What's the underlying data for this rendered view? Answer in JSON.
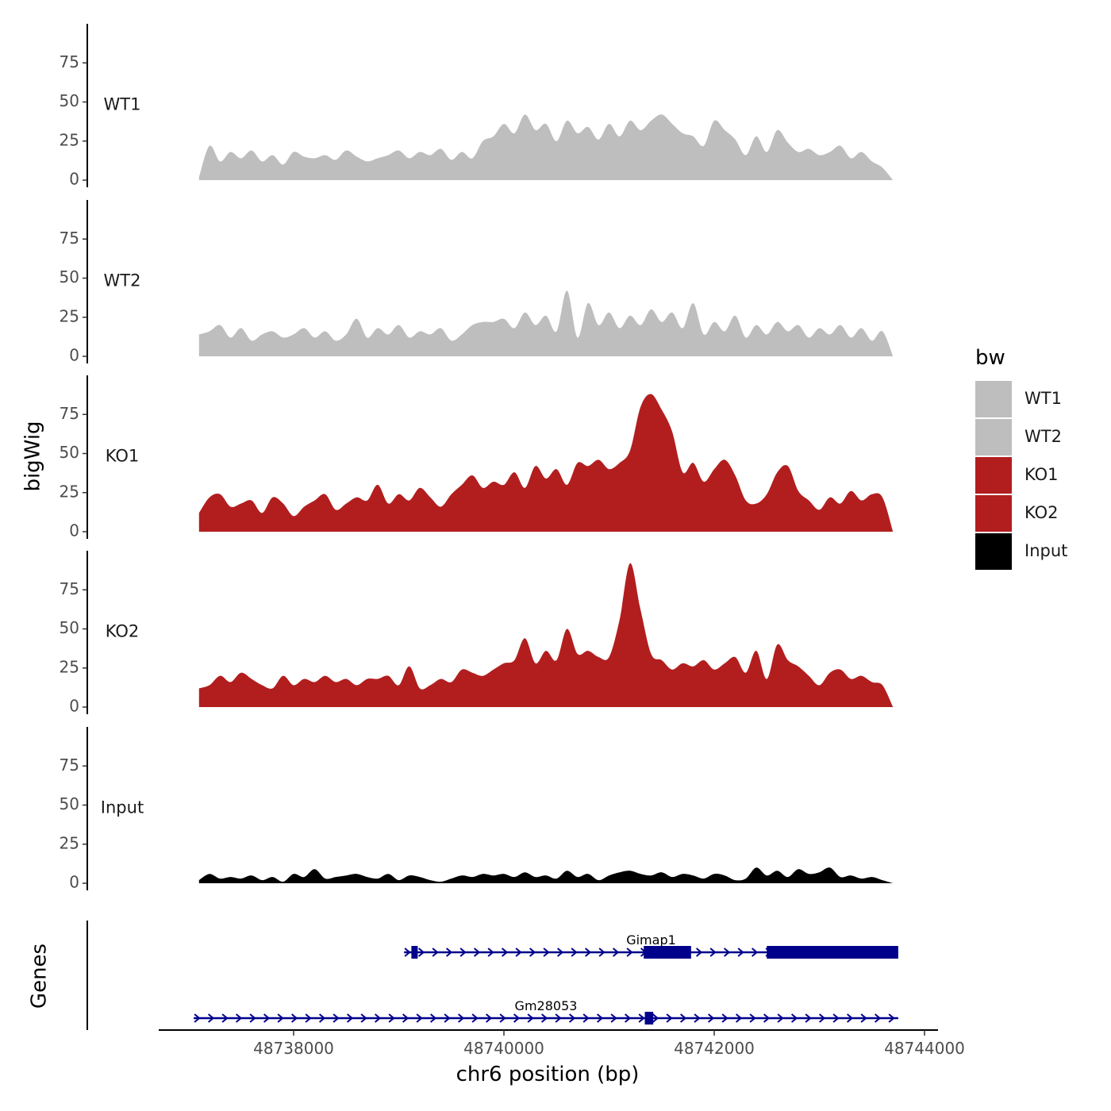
{
  "chart_data": {
    "type": "area",
    "x_axis": {
      "label": "chr6 position (bp)",
      "range": [
        48736700,
        48744200
      ],
      "ticks": [
        48738000,
        48740000,
        48742000,
        48744000
      ],
      "tick_labels": [
        "48738000",
        "48740000",
        "48742000",
        "48744000"
      ]
    },
    "y_axis": {
      "label": "bigWig",
      "range": [
        0,
        100
      ],
      "ticks": [
        0,
        25,
        50,
        75
      ],
      "tick_labels": [
        "0",
        "25",
        "50",
        "75"
      ]
    },
    "genes_axis_label": "Genes",
    "legend": {
      "title": "bw",
      "entries": [
        {
          "label": "WT1",
          "color": "#bebebe"
        },
        {
          "label": "WT2",
          "color": "#bebebe"
        },
        {
          "label": "KO1",
          "color": "#b21e1e"
        },
        {
          "label": "KO2",
          "color": "#b21e1e"
        },
        {
          "label": "Input",
          "color": "#000000"
        }
      ]
    },
    "series": [
      {
        "name": "WT1",
        "color": "#bebebe",
        "x": [
          48737100,
          48737200,
          48737300,
          48737400,
          48737500,
          48737600,
          48737700,
          48737800,
          48737900,
          48738000,
          48738100,
          48738200,
          48738300,
          48738400,
          48738500,
          48738600,
          48738700,
          48738800,
          48738900,
          48739000,
          48739100,
          48739200,
          48739300,
          48739400,
          48739500,
          48739600,
          48739700,
          48739800,
          48739900,
          48740000,
          48740100,
          48740200,
          48740300,
          48740400,
          48740500,
          48740600,
          48740700,
          48740800,
          48740900,
          48741000,
          48741100,
          48741200,
          48741300,
          48741400,
          48741500,
          48741600,
          48741700,
          48741800,
          48741900,
          48742000,
          48742100,
          48742200,
          48742300,
          48742400,
          48742500,
          48742600,
          48742700,
          48742800,
          48742900,
          48743000,
          48743100,
          48743200,
          48743300,
          48743400,
          48743500,
          48743600,
          48743700
        ],
        "values": [
          2,
          22,
          12,
          18,
          14,
          19,
          12,
          16,
          10,
          18,
          15,
          14,
          16,
          13,
          19,
          15,
          12,
          14,
          16,
          19,
          14,
          18,
          16,
          20,
          13,
          18,
          14,
          25,
          28,
          36,
          30,
          42,
          32,
          36,
          25,
          38,
          30,
          34,
          26,
          36,
          28,
          38,
          32,
          38,
          42,
          36,
          30,
          28,
          22,
          38,
          32,
          26,
          16,
          28,
          18,
          32,
          24,
          18,
          20,
          16,
          18,
          22,
          14,
          18,
          12,
          8,
          0
        ]
      },
      {
        "name": "WT2",
        "color": "#bebebe",
        "x": [
          48737100,
          48737200,
          48737300,
          48737400,
          48737500,
          48737600,
          48737700,
          48737800,
          48737900,
          48738000,
          48738100,
          48738200,
          48738300,
          48738400,
          48738500,
          48738600,
          48738700,
          48738800,
          48738900,
          48739000,
          48739100,
          48739200,
          48739300,
          48739400,
          48739500,
          48739600,
          48739700,
          48739800,
          48739900,
          48740000,
          48740100,
          48740200,
          48740300,
          48740400,
          48740500,
          48740600,
          48740700,
          48740800,
          48740900,
          48741000,
          48741100,
          48741200,
          48741300,
          48741400,
          48741500,
          48741600,
          48741700,
          48741800,
          48741900,
          48742000,
          48742100,
          48742200,
          48742300,
          48742400,
          48742500,
          48742600,
          48742700,
          48742800,
          48742900,
          48743000,
          48743100,
          48743200,
          48743300,
          48743400,
          48743500,
          48743600,
          48743700
        ],
        "values": [
          14,
          16,
          20,
          12,
          18,
          10,
          14,
          16,
          12,
          14,
          18,
          12,
          16,
          10,
          14,
          24,
          12,
          18,
          14,
          20,
          12,
          16,
          14,
          18,
          10,
          14,
          20,
          22,
          22,
          24,
          18,
          28,
          20,
          26,
          16,
          42,
          12,
          34,
          20,
          28,
          18,
          26,
          20,
          30,
          22,
          28,
          18,
          34,
          14,
          22,
          16,
          26,
          12,
          20,
          14,
          22,
          16,
          20,
          12,
          18,
          14,
          20,
          12,
          18,
          10,
          16,
          0
        ]
      },
      {
        "name": "KO1",
        "color": "#b21e1e",
        "x": [
          48737100,
          48737200,
          48737300,
          48737400,
          48737500,
          48737600,
          48737700,
          48737800,
          48737900,
          48738000,
          48738100,
          48738200,
          48738300,
          48738400,
          48738500,
          48738600,
          48738700,
          48738800,
          48738900,
          48739000,
          48739100,
          48739200,
          48739300,
          48739400,
          48739500,
          48739600,
          48739700,
          48739800,
          48739900,
          48740000,
          48740100,
          48740200,
          48740300,
          48740400,
          48740500,
          48740600,
          48740700,
          48740800,
          48740900,
          48741000,
          48741100,
          48741200,
          48741300,
          48741400,
          48741500,
          48741600,
          48741700,
          48741800,
          48741900,
          48742000,
          48742100,
          48742200,
          48742300,
          48742400,
          48742500,
          48742600,
          48742700,
          48742800,
          48742900,
          48743000,
          48743100,
          48743200,
          48743300,
          48743400,
          48743500,
          48743600,
          48743700
        ],
        "values": [
          12,
          22,
          24,
          16,
          18,
          20,
          12,
          22,
          18,
          10,
          16,
          20,
          24,
          14,
          18,
          22,
          20,
          30,
          18,
          24,
          20,
          28,
          22,
          16,
          24,
          30,
          36,
          28,
          32,
          30,
          38,
          28,
          42,
          34,
          40,
          30,
          44,
          42,
          46,
          40,
          44,
          52,
          80,
          88,
          78,
          64,
          38,
          44,
          32,
          40,
          46,
          36,
          20,
          18,
          24,
          38,
          42,
          26,
          20,
          14,
          22,
          18,
          26,
          20,
          24,
          22,
          0
        ]
      },
      {
        "name": "KO2",
        "color": "#b21e1e",
        "x": [
          48737100,
          48737200,
          48737300,
          48737400,
          48737500,
          48737600,
          48737700,
          48737800,
          48737900,
          48738000,
          48738100,
          48738200,
          48738300,
          48738400,
          48738500,
          48738600,
          48738700,
          48738800,
          48738900,
          48739000,
          48739100,
          48739200,
          48739300,
          48739400,
          48739500,
          48739600,
          48739700,
          48739800,
          48739900,
          48740000,
          48740100,
          48740200,
          48740300,
          48740400,
          48740500,
          48740600,
          48740700,
          48740800,
          48740900,
          48741000,
          48741100,
          48741200,
          48741300,
          48741400,
          48741500,
          48741600,
          48741700,
          48741800,
          48741900,
          48742000,
          48742100,
          48742200,
          48742300,
          48742400,
          48742500,
          48742600,
          48742700,
          48742800,
          48742900,
          48743000,
          48743100,
          48743200,
          48743300,
          48743400,
          48743500,
          48743600,
          48743700
        ],
        "values": [
          12,
          14,
          20,
          16,
          22,
          18,
          14,
          12,
          20,
          14,
          18,
          16,
          20,
          16,
          18,
          14,
          18,
          18,
          20,
          14,
          26,
          12,
          14,
          18,
          16,
          24,
          22,
          20,
          24,
          28,
          30,
          44,
          28,
          36,
          30,
          50,
          34,
          36,
          32,
          32,
          56,
          92,
          62,
          34,
          30,
          24,
          28,
          26,
          30,
          24,
          28,
          32,
          22,
          36,
          18,
          40,
          30,
          26,
          20,
          14,
          22,
          24,
          18,
          20,
          16,
          14,
          0
        ]
      },
      {
        "name": "Input",
        "color": "#000000",
        "x": [
          48737100,
          48737200,
          48737300,
          48737400,
          48737500,
          48737600,
          48737700,
          48737800,
          48737900,
          48738000,
          48738100,
          48738200,
          48738300,
          48738400,
          48738500,
          48738600,
          48738700,
          48738800,
          48738900,
          48739000,
          48739100,
          48739200,
          48739300,
          48739400,
          48739500,
          48739600,
          48739700,
          48739800,
          48739900,
          48740000,
          48740100,
          48740200,
          48740300,
          48740400,
          48740500,
          48740600,
          48740700,
          48740800,
          48740900,
          48741000,
          48741100,
          48741200,
          48741300,
          48741400,
          48741500,
          48741600,
          48741700,
          48741800,
          48741900,
          48742000,
          48742100,
          48742200,
          48742300,
          48742400,
          48742500,
          48742600,
          48742700,
          48742800,
          48742900,
          48743000,
          48743100,
          48743200,
          48743300,
          48743400,
          48743500,
          48743600,
          48743700
        ],
        "values": [
          2,
          6,
          3,
          4,
          3,
          5,
          2,
          4,
          1,
          6,
          4,
          9,
          3,
          4,
          5,
          6,
          4,
          3,
          6,
          2,
          5,
          4,
          2,
          1,
          3,
          5,
          4,
          6,
          5,
          6,
          4,
          7,
          4,
          5,
          3,
          8,
          4,
          6,
          2,
          5,
          7,
          8,
          6,
          5,
          7,
          4,
          6,
          5,
          3,
          6,
          5,
          2,
          3,
          10,
          5,
          8,
          4,
          9,
          6,
          7,
          10,
          4,
          5,
          3,
          4,
          2,
          0
        ]
      }
    ],
    "genes": [
      {
        "name": "Gimap1",
        "strand": "+",
        "color": "#00008b",
        "start": 48739050,
        "end": 48743750,
        "exons": [
          [
            48739120,
            48739180
          ],
          [
            48741330,
            48741780
          ],
          [
            48742500,
            48743750
          ]
        ],
        "label_x": 48741400
      },
      {
        "name": "Gm28053",
        "strand": "+",
        "color": "#00008b",
        "start": 48737050,
        "end": 48743750,
        "exons": [
          [
            48741340,
            48741420
          ]
        ],
        "label_x": 48740400
      }
    ]
  }
}
